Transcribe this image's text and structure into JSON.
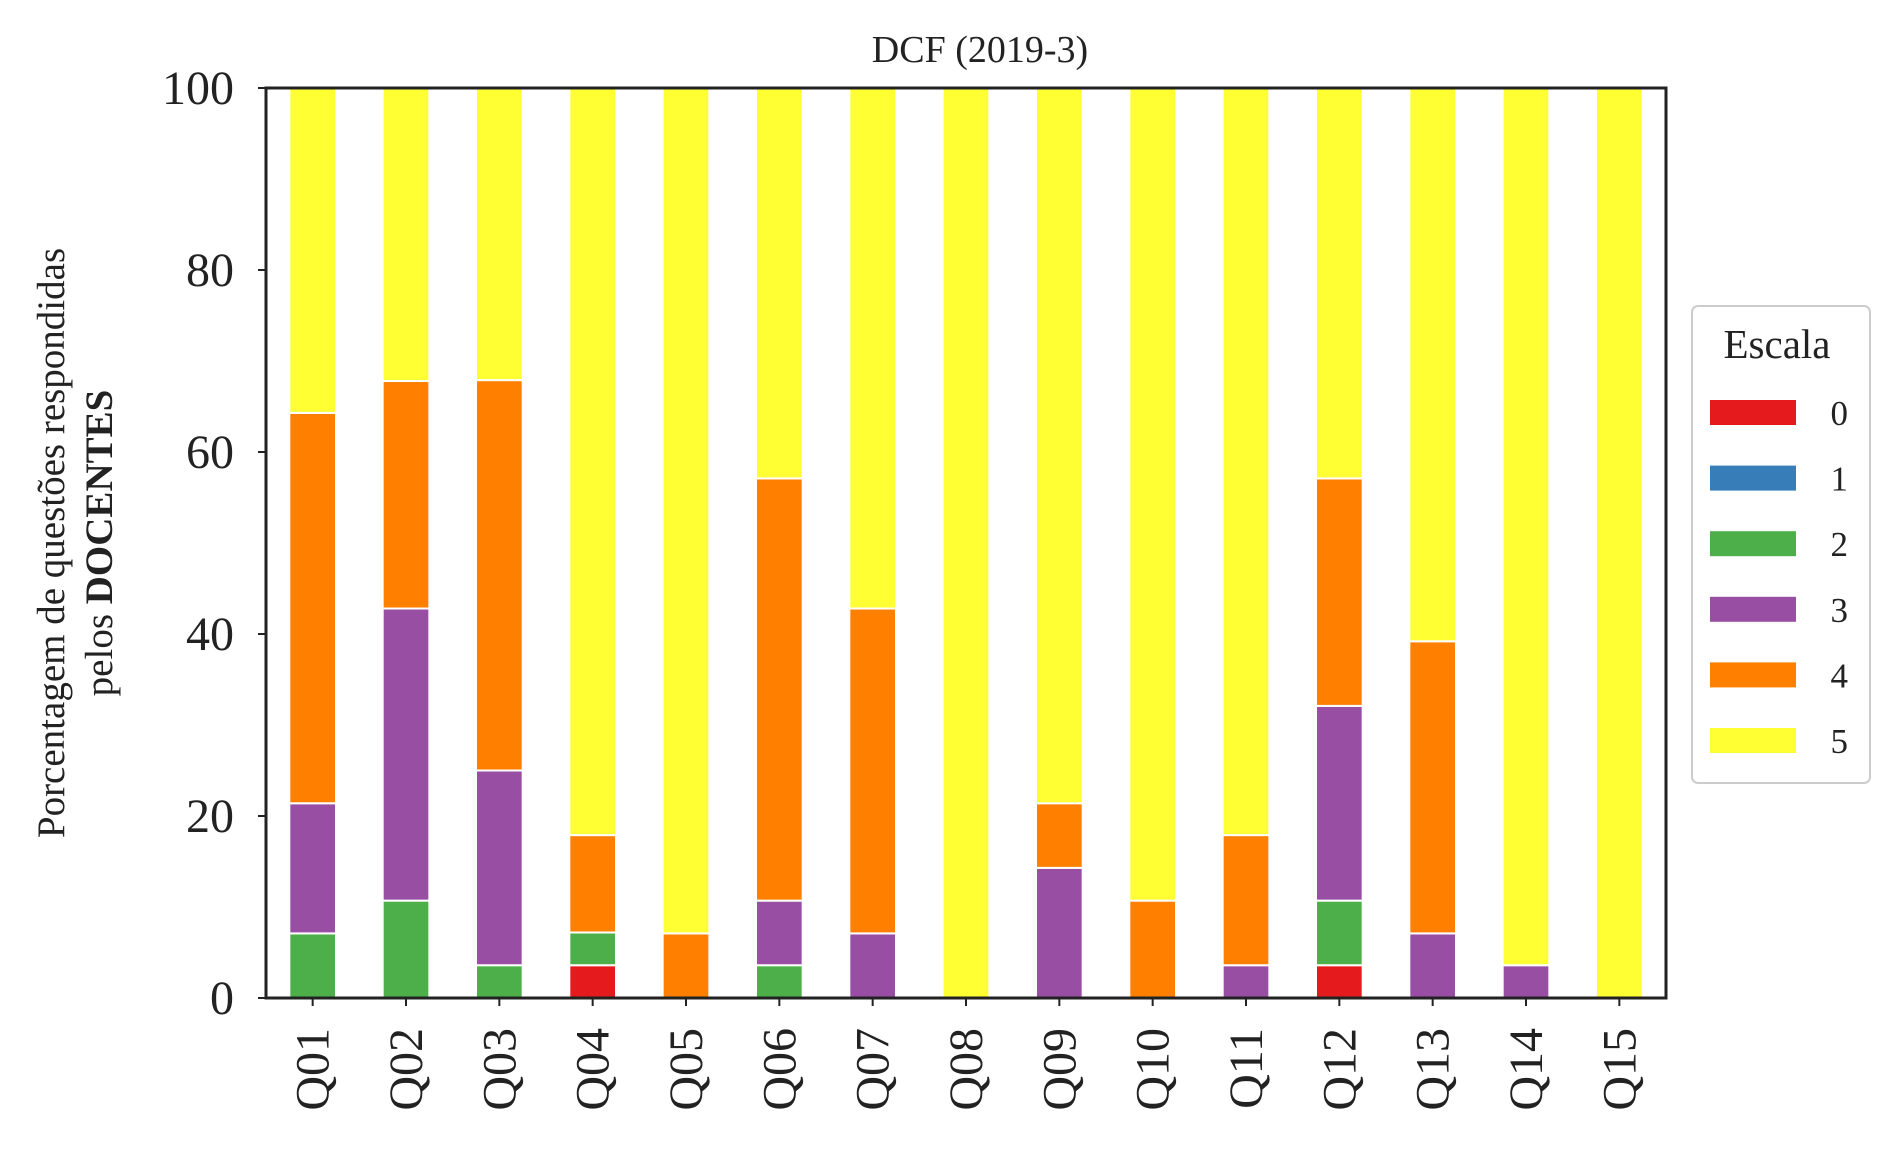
{
  "chart_data": {
    "type": "bar",
    "stacked": true,
    "title": "DCF (2019-3)",
    "ylabel_line1": "Porcentagem de questões respondidas",
    "ylabel_line2_prefix": "pelos ",
    "ylabel_line2_bold": "DOCENTES",
    "xlabel": "",
    "ylim": [
      0,
      100
    ],
    "yticks": [
      "0",
      "20",
      "40",
      "60",
      "80",
      "100"
    ],
    "grid": false,
    "legend": {
      "title": "Escala",
      "placement": "right"
    },
    "categories": [
      "Q01",
      "Q02",
      "Q03",
      "Q04",
      "Q05",
      "Q06",
      "Q07",
      "Q08",
      "Q09",
      "Q10",
      "Q11",
      "Q12",
      "Q13",
      "Q14",
      "Q15"
    ],
    "series": [
      {
        "name": "0",
        "color": "#e41a1c",
        "values": [
          0,
          0,
          0,
          3.6,
          0,
          0,
          0,
          0,
          0,
          0,
          0,
          3.6,
          0,
          0,
          0
        ]
      },
      {
        "name": "1",
        "color": "#377eb8",
        "values": [
          0,
          0,
          0,
          0,
          0,
          0,
          0,
          0,
          0,
          0,
          0,
          0,
          0,
          0,
          0
        ]
      },
      {
        "name": "2",
        "color": "#4daf4a",
        "values": [
          7.1,
          10.7,
          3.6,
          3.6,
          0,
          3.6,
          0,
          0,
          0,
          0,
          0,
          7.1,
          0,
          0,
          0
        ]
      },
      {
        "name": "3",
        "color": "#984ea3",
        "values": [
          14.3,
          32.1,
          21.4,
          0,
          0,
          7.1,
          7.1,
          0,
          14.3,
          0,
          3.6,
          21.4,
          7.1,
          3.6,
          0
        ]
      },
      {
        "name": "4",
        "color": "#ff7f00",
        "values": [
          42.9,
          25.0,
          42.9,
          10.7,
          7.1,
          46.4,
          35.7,
          0,
          7.1,
          10.7,
          14.3,
          25.0,
          32.1,
          0,
          0
        ]
      },
      {
        "name": "5",
        "color": "#ffff33",
        "values": [
          35.7,
          32.2,
          32.1,
          82.1,
          92.9,
          42.9,
          57.2,
          100,
          78.6,
          89.3,
          82.1,
          42.9,
          60.8,
          96.4,
          100
        ]
      }
    ]
  }
}
